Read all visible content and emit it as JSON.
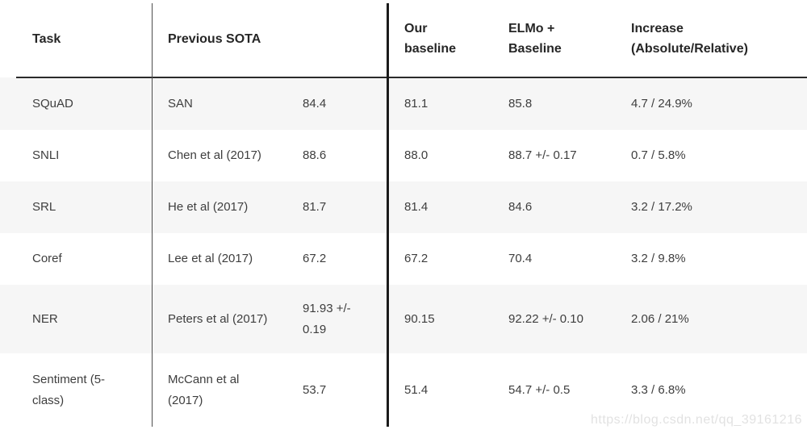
{
  "table": {
    "columns": [
      {
        "id": "task",
        "label": "Task"
      },
      {
        "id": "previous_sota",
        "label": "Previous SOTA"
      },
      {
        "id": "previous_sota_score",
        "label": ""
      },
      {
        "id": "our_baseline",
        "label": "Our baseline"
      },
      {
        "id": "elmo_baseline",
        "label": "ELMo + Baseline"
      },
      {
        "id": "increase",
        "label": "Increase (Absolute/Relative)"
      }
    ],
    "rows": [
      {
        "task": "SQuAD",
        "sota_name": "SAN",
        "sota_score": "84.4",
        "our_baseline": "81.1",
        "elmo_baseline": "85.8",
        "increase": "4.7 / 24.9%"
      },
      {
        "task": "SNLI",
        "sota_name": "Chen et al (2017)",
        "sota_score": "88.6",
        "our_baseline": "88.0",
        "elmo_baseline": "88.7 +/- 0.17",
        "increase": "0.7 / 5.8%"
      },
      {
        "task": "SRL",
        "sota_name": "He et al (2017)",
        "sota_score": "81.7",
        "our_baseline": "81.4",
        "elmo_baseline": "84.6",
        "increase": "3.2 / 17.2%"
      },
      {
        "task": "Coref",
        "sota_name": "Lee et al (2017)",
        "sota_score": "67.2",
        "our_baseline": "67.2",
        "elmo_baseline": "70.4",
        "increase": "3.2 / 9.8%"
      },
      {
        "task": "NER",
        "sota_name": "Peters et al (2017)",
        "sota_score": "91.93 +/- 0.19",
        "our_baseline": "90.15",
        "elmo_baseline": "92.22 +/- 0.10",
        "increase": "2.06 / 21%"
      },
      {
        "task": "Sentiment (5-class)",
        "sota_name": "McCann et al (2017)",
        "sota_score": "53.7",
        "our_baseline": "51.4",
        "elmo_baseline": "54.7 +/- 0.5",
        "increase": "3.3 / 6.8%"
      }
    ]
  },
  "watermark": {
    "text": "https://blog.csdn.net/qq_39161216"
  },
  "colors": {
    "stripe": "#f6f6f6",
    "header_text": "#262626",
    "body_text": "#3e3e3e",
    "divider": "#2b2b2b",
    "watermark": "#e2e2e2"
  }
}
